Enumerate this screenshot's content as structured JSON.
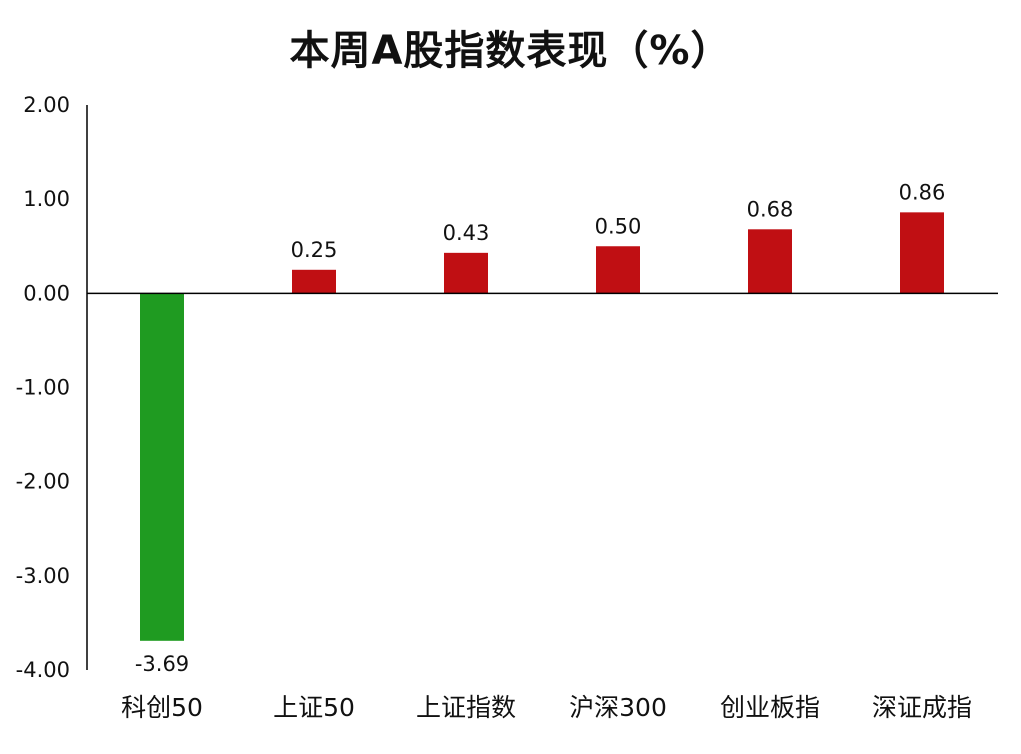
{
  "chart_data": {
    "type": "bar",
    "title": "本周A股指数表现（%）",
    "xlabel": "",
    "ylabel": "",
    "categories": [
      "科创50",
      "上证50",
      "上证指数",
      "沪深300",
      "创业板指",
      "深证成指"
    ],
    "values": [
      -3.69,
      0.25,
      0.43,
      0.5,
      0.68,
      0.86
    ],
    "value_labels": [
      "-3.69",
      "0.25",
      "0.43",
      "0.50",
      "0.68",
      "0.86"
    ],
    "ylim": [
      -4.0,
      2.0
    ],
    "yticks": [
      "2.00",
      "1.00",
      "0.00",
      "-1.00",
      "-2.00",
      "-3.00",
      "-4.00"
    ],
    "ytick_values": [
      2,
      1,
      0,
      -1,
      -2,
      -3,
      -4
    ],
    "grid": false,
    "legend": "none",
    "colors": {
      "positive": "#C00F13",
      "negative": "#1F9B21",
      "axis": "#000000"
    }
  }
}
